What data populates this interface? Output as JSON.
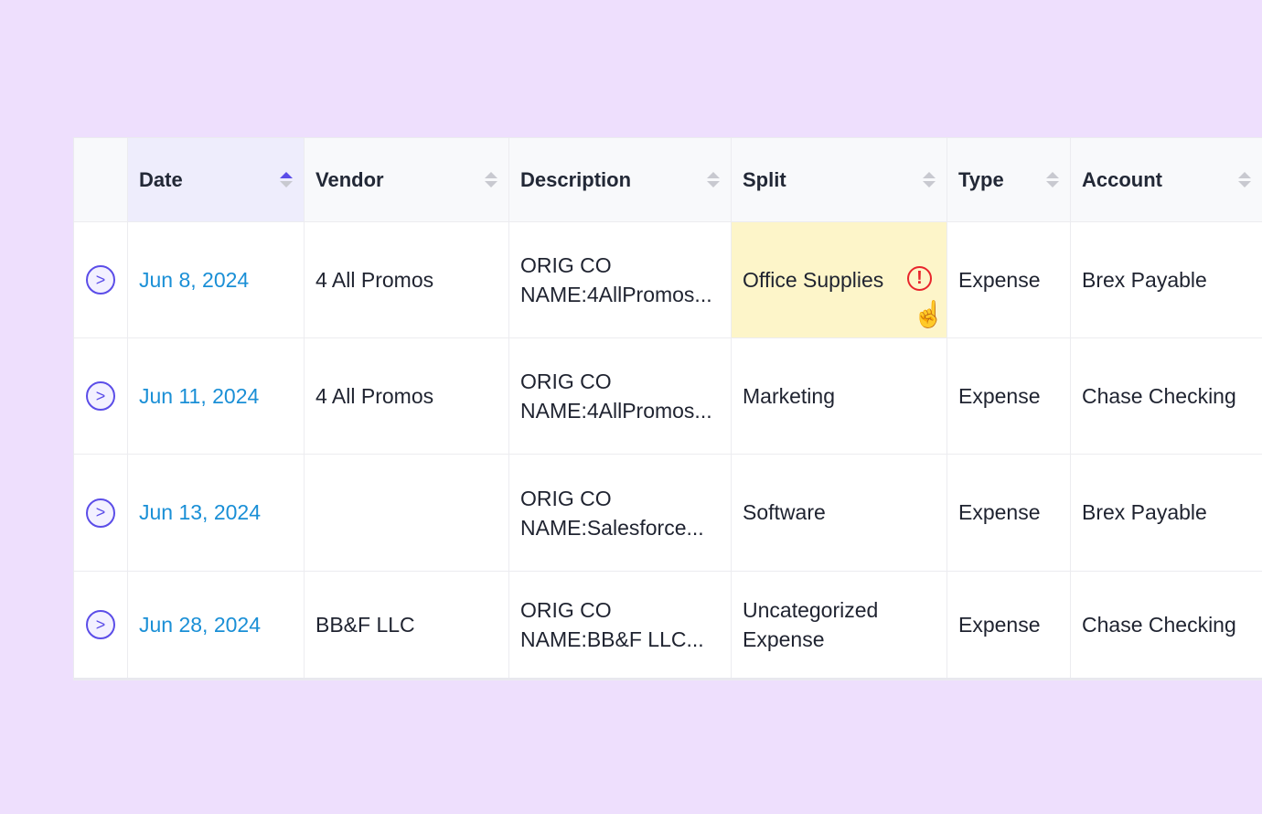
{
  "columns": [
    "Date",
    "Vendor",
    "Description",
    "Split",
    "Type",
    "Account"
  ],
  "sorted_column": "Date",
  "rows": [
    {
      "date": "Jun 8, 2024",
      "vendor": "4 All Promos",
      "desc1": "ORIG CO",
      "desc2": "NAME:4AllPromos...",
      "split": "Office Supplies",
      "type": "Expense",
      "account": "Brex Payable",
      "warning": true
    },
    {
      "date": "Jun 11, 2024",
      "vendor": "4 All Promos",
      "desc1": "ORIG CO",
      "desc2": "NAME:4AllPromos...",
      "split": "Marketing",
      "type": "Expense",
      "account": "Chase Checking"
    },
    {
      "date": "Jun 13, 2024",
      "vendor": "",
      "desc1": "ORIG CO",
      "desc2": "NAME:Salesforce...",
      "split": "Software",
      "type": "Expense",
      "account": "Brex Payable"
    },
    {
      "date": "Jun 28, 2024",
      "vendor": "BB&F LLC",
      "desc1": "ORIG CO",
      "desc2": "NAME:BB&F LLC...",
      "split": "Uncategorized Expense",
      "type": "Expense",
      "account": "Chase Checking"
    }
  ],
  "warning_icon": "!",
  "expand_icon": ">",
  "cursor_icon": "☝"
}
